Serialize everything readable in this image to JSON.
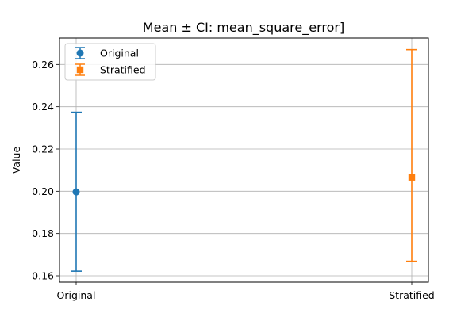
{
  "chart_data": {
    "type": "scatter",
    "title": "Mean ± CI: mean_square_error]",
    "xlabel": "",
    "ylabel": "Value",
    "categories": [
      "Original",
      "Stratified"
    ],
    "series": [
      {
        "name": "Original",
        "category": "Original",
        "mean": 0.1997,
        "ci_low": 0.1622,
        "ci_high": 0.2374,
        "marker": "circle",
        "color": "#1f77b4"
      },
      {
        "name": "Stratified",
        "category": "Stratified",
        "mean": 0.2066,
        "ci_low": 0.1669,
        "ci_high": 0.267,
        "marker": "square",
        "color": "#ff7f0e"
      }
    ],
    "ylim": [
      0.157,
      0.2725
    ],
    "yticks": [
      0.16,
      0.18,
      0.2,
      0.22,
      0.24,
      0.26
    ],
    "ytick_labels": [
      "0.16",
      "0.18",
      "0.20",
      "0.22",
      "0.24",
      "0.26"
    ],
    "grid": true,
    "legend_position": "top-left"
  }
}
